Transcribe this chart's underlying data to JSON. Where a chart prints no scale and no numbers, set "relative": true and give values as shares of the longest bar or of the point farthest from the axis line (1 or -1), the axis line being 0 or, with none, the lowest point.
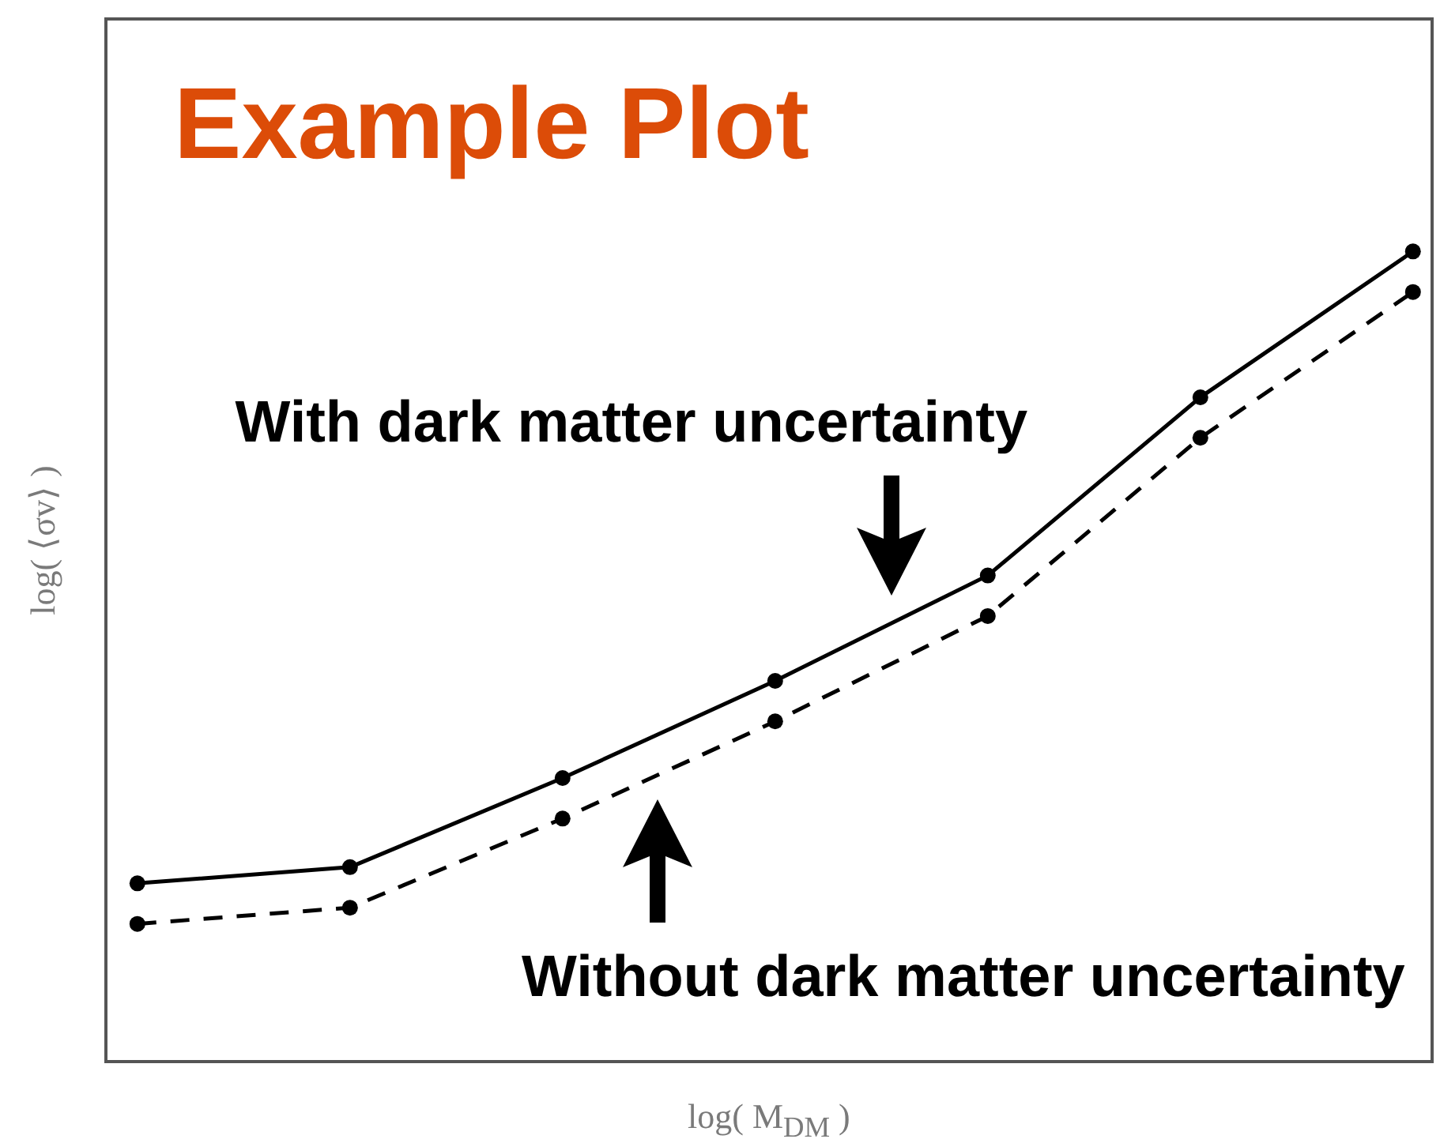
{
  "chart_data": {
    "type": "line",
    "title": "Example Plot",
    "xlabel": "log( M$_{DM}$ )",
    "ylabel": "log( ⟨σv⟩ )",
    "categories": [
      null,
      null,
      null,
      null,
      null,
      null,
      null
    ],
    "relative": true,
    "series": [
      {
        "color": "#000000",
        "line_style": "solid",
        "values": [
          0.22,
          0.24,
          0.35,
          0.47,
          0.6,
          0.82,
          1
        ]
      },
      {
        "color": "#000000",
        "line_style": "dashed",
        "values": [
          0.17,
          0.19,
          0.3,
          0.42,
          0.55,
          0.77,
          0.95
        ]
      }
    ],
    "annotations": [
      "With dark matter uncertainty",
      "Without dark matter uncertainty"
    ],
    "marker": "circle",
    "legend": false,
    "grid": false
  }
}
